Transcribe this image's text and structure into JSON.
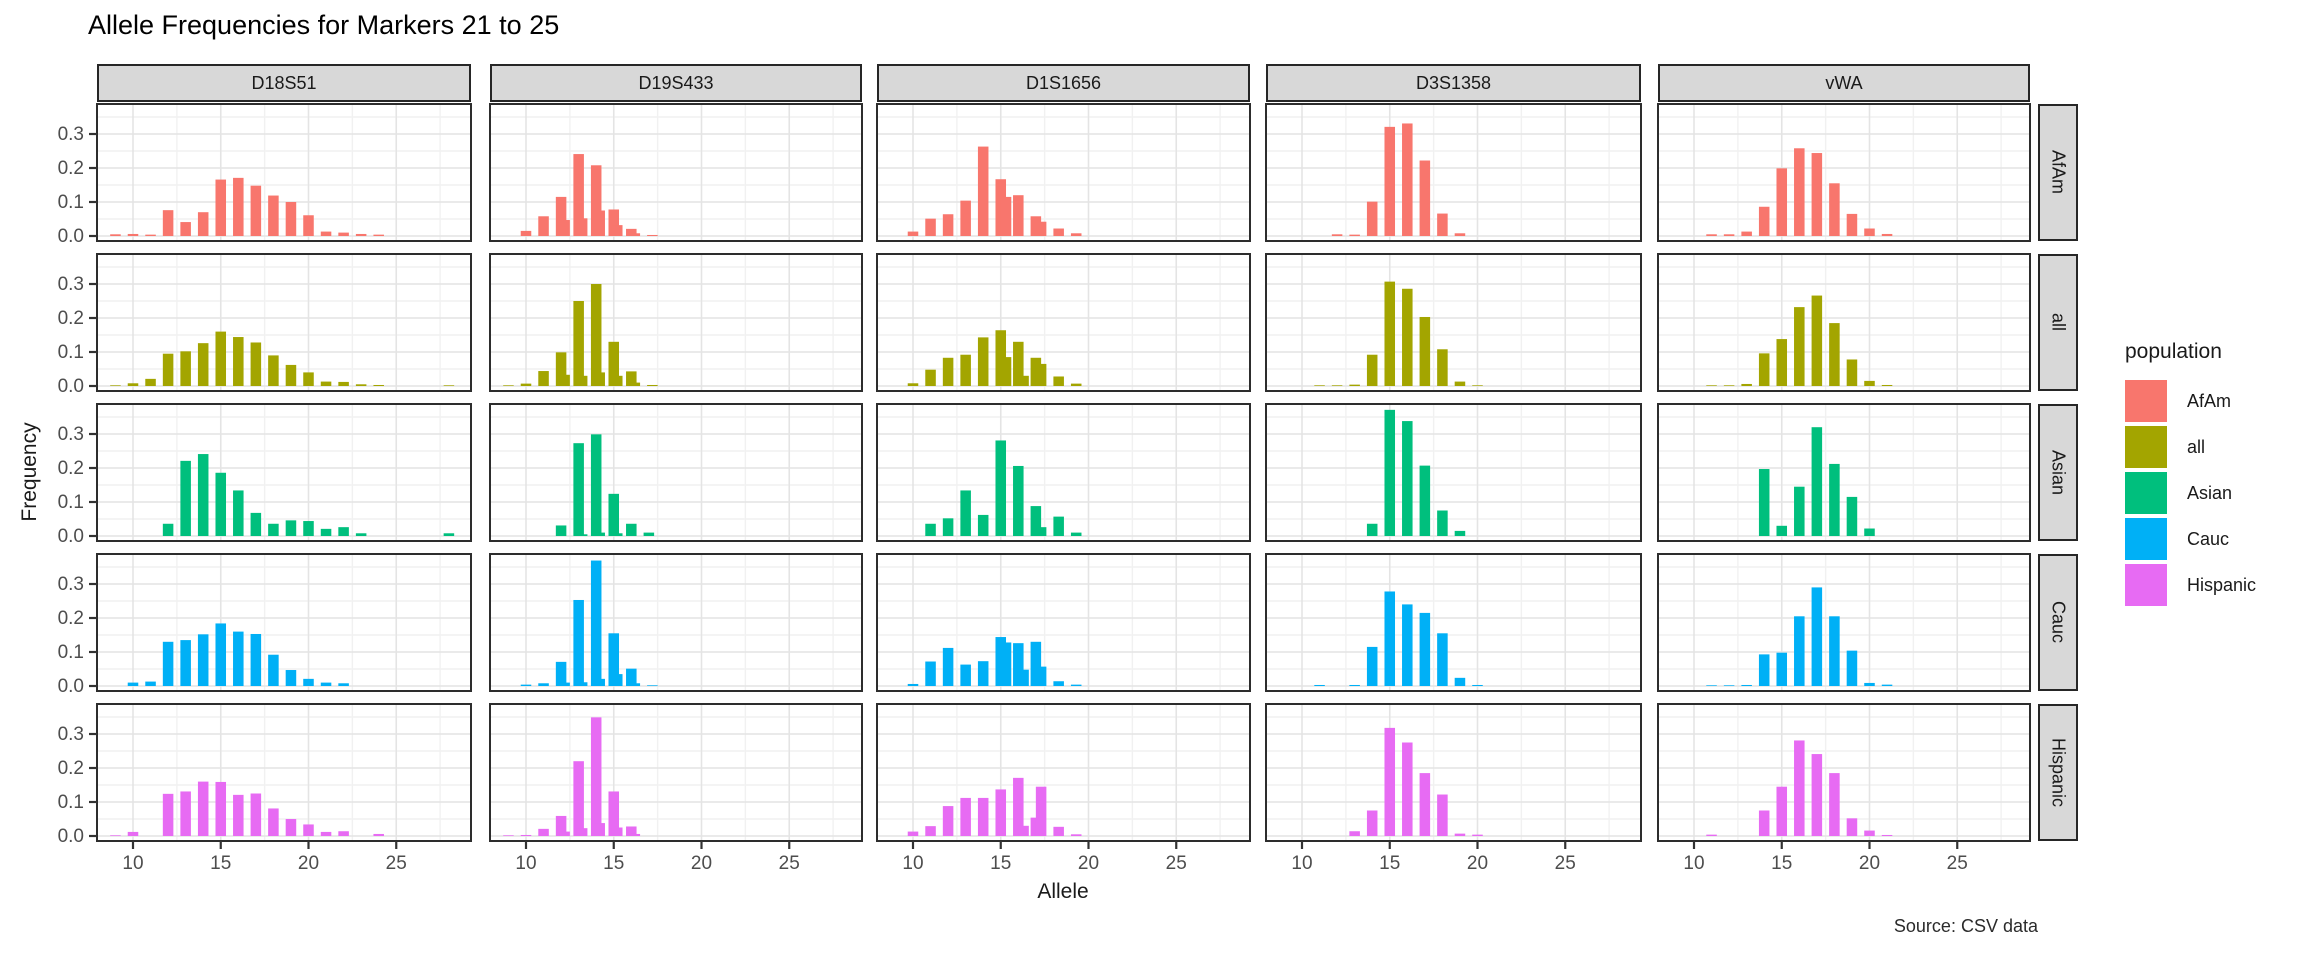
{
  "page": {
    "background": "#ffffff"
  },
  "chart_data": {
    "type": "bar",
    "title": "Allele Frequencies for Markers 21 to 25",
    "xlabel": "Allele",
    "ylabel": "Frequency",
    "caption": "Source: CSV data",
    "legend_title": "population",
    "legend_position": "right",
    "facet_columns": [
      "D18S51",
      "D19S433",
      "D1S1656",
      "D3S1358",
      "vWA"
    ],
    "facet_rows": [
      "AfAm",
      "all",
      "Asian",
      "Cauc",
      "Hispanic"
    ],
    "populations": [
      {
        "name": "AfAm",
        "color": "#F8766D"
      },
      {
        "name": "all",
        "color": "#A3A500"
      },
      {
        "name": "Asian",
        "color": "#00BF7D"
      },
      {
        "name": "Cauc",
        "color": "#00B0F6"
      },
      {
        "name": "Hispanic",
        "color": "#E76BF3"
      }
    ],
    "x_ticks": [
      10,
      15,
      20,
      25
    ],
    "y_ticks": [
      "0.0",
      "0.1",
      "0.2",
      "0.3"
    ],
    "x_domain": [
      7.95,
      29.25
    ],
    "y_domain": [
      -0.015,
      0.388
    ],
    "bar_width_alleles": 0.6,
    "grid": {
      "major_x": [
        10,
        15,
        20,
        25
      ],
      "minor_x": [
        12.5,
        17.5,
        22.5,
        27.5
      ],
      "major_y": [
        0,
        0.1,
        0.2,
        0.3
      ],
      "minor_y": [
        0.05,
        0.15,
        0.25,
        0.35
      ]
    },
    "colors": {
      "panel_border": "#2d2d2d",
      "grid_major": "#e4e4e4",
      "grid_minor": "#f1f1f1",
      "tick_label": "#4d4d4d",
      "strip_fill": "#d8d8d8"
    },
    "frequencies": {
      "D18S51": {
        "AfAm": {
          "9": 0.005,
          "10": 0.006,
          "11": 0.004,
          "12": 0.076,
          "13": 0.041,
          "14": 0.07,
          "15": 0.166,
          "16": 0.171,
          "17": 0.148,
          "18": 0.119,
          "19": 0.1,
          "20": 0.061,
          "21": 0.013,
          "22": 0.01,
          "23": 0.006,
          "24": 0.004
        },
        "all": {
          "9": 0.002,
          "10": 0.008,
          "11": 0.021,
          "12": 0.095,
          "13": 0.102,
          "14": 0.126,
          "15": 0.16,
          "16": 0.144,
          "17": 0.128,
          "18": 0.09,
          "19": 0.062,
          "20": 0.04,
          "21": 0.013,
          "22": 0.012,
          "23": 0.005,
          "24": 0.003,
          "28": 0.002
        },
        "Asian": {
          "12": 0.036,
          "13": 0.221,
          "14": 0.241,
          "15": 0.186,
          "16": 0.134,
          "17": 0.068,
          "18": 0.036,
          "19": 0.046,
          "20": 0.044,
          "21": 0.021,
          "22": 0.026,
          "23": 0.008,
          "28": 0.008
        },
        "Cauc": {
          "10": 0.01,
          "11": 0.013,
          "12": 0.13,
          "13": 0.135,
          "14": 0.152,
          "15": 0.184,
          "16": 0.16,
          "17": 0.153,
          "18": 0.092,
          "19": 0.047,
          "20": 0.021,
          "21": 0.01,
          "22": 0.008
        },
        "Hispanic": {
          "9": 0.002,
          "10": 0.012,
          "12": 0.124,
          "13": 0.131,
          "14": 0.16,
          "15": 0.159,
          "16": 0.121,
          "17": 0.125,
          "18": 0.081,
          "19": 0.05,
          "20": 0.034,
          "21": 0.012,
          "22": 0.014,
          "24": 0.006
        }
      },
      "D19S433": {
        "AfAm": {
          "10": 0.015,
          "11": 0.058,
          "12": 0.115,
          "12.2": 0.047,
          "13": 0.241,
          "13.2": 0.052,
          "14": 0.208,
          "14.2": 0.075,
          "15": 0.078,
          "15.2": 0.032,
          "16": 0.021,
          "16.2": 0.008,
          "17.2": 0.003
        },
        "all": {
          "9": 0.002,
          "10": 0.007,
          "11": 0.044,
          "12": 0.099,
          "12.2": 0.033,
          "13": 0.25,
          "13.2": 0.03,
          "14": 0.3,
          "14.2": 0.04,
          "15": 0.13,
          "15.2": 0.03,
          "16": 0.043,
          "16.2": 0.01,
          "17.2": 0.003
        },
        "Asian": {
          "12": 0.031,
          "13": 0.273,
          "13.2": 0.005,
          "14": 0.299,
          "14.2": 0.01,
          "15": 0.124,
          "15.2": 0.008,
          "16": 0.036,
          "17": 0.01
        },
        "Cauc": {
          "10": 0.004,
          "11": 0.008,
          "12": 0.071,
          "12.2": 0.01,
          "13": 0.253,
          "13.2": 0.011,
          "14": 0.369,
          "14.2": 0.021,
          "15": 0.155,
          "15.2": 0.035,
          "16": 0.051,
          "16.2": 0.008,
          "17.2": 0.002
        },
        "Hispanic": {
          "9": 0.002,
          "10": 0.003,
          "11": 0.021,
          "12": 0.059,
          "12.2": 0.013,
          "13": 0.22,
          "13.2": 0.023,
          "14": 0.349,
          "14.2": 0.038,
          "15": 0.131,
          "15.2": 0.025,
          "16": 0.028,
          "16.2": 0.006
        }
      },
      "D1S1656": {
        "AfAm": {
          "10": 0.013,
          "11": 0.051,
          "12": 0.064,
          "13": 0.104,
          "14": 0.263,
          "15": 0.167,
          "15.3": 0.115,
          "16": 0.12,
          "17": 0.058,
          "17.3": 0.042,
          "18.3": 0.022,
          "19.3": 0.008
        },
        "all": {
          "10": 0.008,
          "11": 0.048,
          "12": 0.083,
          "13": 0.092,
          "14": 0.143,
          "15": 0.164,
          "15.3": 0.085,
          "16": 0.13,
          "16.3": 0.03,
          "17": 0.083,
          "17.3": 0.065,
          "18.3": 0.028,
          "19.3": 0.007
        },
        "Asian": {
          "11": 0.036,
          "12": 0.052,
          "13": 0.134,
          "14": 0.062,
          "15": 0.281,
          "16": 0.206,
          "17": 0.088,
          "17.3": 0.026,
          "18.3": 0.057,
          "19.3": 0.01
        },
        "Cauc": {
          "10": 0.006,
          "11": 0.072,
          "12": 0.112,
          "13": 0.063,
          "14": 0.073,
          "15": 0.144,
          "15.3": 0.128,
          "16": 0.126,
          "16.3": 0.048,
          "17": 0.13,
          "17.3": 0.057,
          "18.3": 0.014,
          "19.3": 0.004
        },
        "Hispanic": {
          "10": 0.013,
          "11": 0.029,
          "12": 0.088,
          "13": 0.112,
          "14": 0.112,
          "15": 0.137,
          "16": 0.171,
          "16.3": 0.03,
          "17": 0.054,
          "17.3": 0.145,
          "18.3": 0.027,
          "19.3": 0.005
        }
      },
      "D3S1358": {
        "AfAm": {
          "12": 0.005,
          "13": 0.004,
          "14": 0.101,
          "15": 0.321,
          "16": 0.331,
          "17": 0.222,
          "18": 0.066,
          "19": 0.008
        },
        "all": {
          "11": 0.002,
          "12": 0.002,
          "13": 0.004,
          "14": 0.092,
          "15": 0.307,
          "16": 0.286,
          "17": 0.203,
          "18": 0.108,
          "19": 0.013,
          "20": 0.002
        },
        "Asian": {
          "14": 0.036,
          "15": 0.371,
          "16": 0.338,
          "17": 0.207,
          "18": 0.075,
          "19": 0.015
        },
        "Cauc": {
          "11": 0.003,
          "13": 0.003,
          "14": 0.115,
          "15": 0.278,
          "16": 0.24,
          "17": 0.215,
          "18": 0.155,
          "19": 0.024,
          "20": 0.003
        },
        "Hispanic": {
          "13": 0.014,
          "14": 0.075,
          "15": 0.318,
          "16": 0.275,
          "17": 0.185,
          "18": 0.122,
          "19": 0.007,
          "20": 0.004
        }
      },
      "vWA": {
        "AfAm": {
          "11": 0.005,
          "12": 0.005,
          "13": 0.013,
          "14": 0.086,
          "15": 0.199,
          "16": 0.258,
          "17": 0.244,
          "18": 0.155,
          "19": 0.065,
          "20": 0.022,
          "21": 0.006
        },
        "all": {
          "11": 0.002,
          "12": 0.002,
          "13": 0.006,
          "14": 0.096,
          "15": 0.138,
          "16": 0.232,
          "17": 0.266,
          "18": 0.185,
          "19": 0.078,
          "20": 0.015,
          "21": 0.003
        },
        "Asian": {
          "14": 0.197,
          "15": 0.03,
          "16": 0.145,
          "17": 0.32,
          "18": 0.212,
          "19": 0.115,
          "20": 0.022
        },
        "Cauc": {
          "11": 0.002,
          "12": 0.002,
          "13": 0.003,
          "14": 0.093,
          "15": 0.098,
          "16": 0.205,
          "17": 0.29,
          "18": 0.205,
          "19": 0.104,
          "20": 0.009,
          "21": 0.004
        },
        "Hispanic": {
          "11": 0.004,
          "14": 0.075,
          "15": 0.145,
          "16": 0.281,
          "17": 0.241,
          "18": 0.185,
          "19": 0.052,
          "20": 0.016,
          "21": 0.003
        }
      }
    }
  }
}
